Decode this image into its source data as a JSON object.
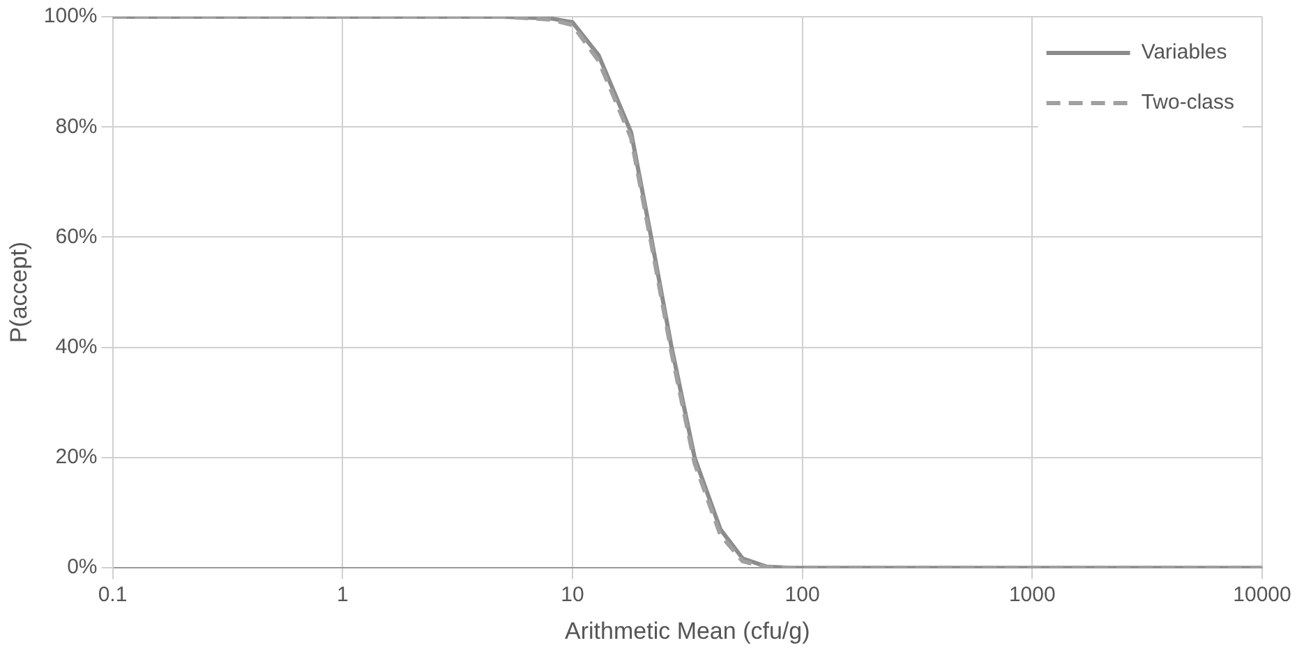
{
  "chart_data": {
    "type": "line",
    "xlabel": "Arithmetic Mean (cfu/g)",
    "ylabel": "P(accept)",
    "log": "x",
    "xlim": [
      0.1,
      10000
    ],
    "xticks": [
      0.1,
      1,
      10,
      100,
      1000,
      10000
    ],
    "ylim": [
      0,
      100
    ],
    "yticks": [
      {
        "value": 0,
        "label": "0%"
      },
      {
        "value": 20,
        "label": "20%"
      },
      {
        "value": 40,
        "label": "40%"
      },
      {
        "value": 60,
        "label": "60%"
      },
      {
        "value": 80,
        "label": "80%"
      },
      {
        "value": 100,
        "label": "100%"
      }
    ],
    "grid": true,
    "legend": "top right",
    "marker": "none",
    "series": [
      {
        "name": "Variables",
        "color": "#8c8c8c",
        "line_style": "solid",
        "x": [
          0.1,
          1,
          5,
          8,
          10,
          13,
          18,
          22,
          27,
          34,
          44,
          55,
          70,
          90,
          100,
          1000,
          10000
        ],
        "values": [
          100,
          100,
          100,
          99.7,
          99,
          93,
          79,
          60,
          40,
          20,
          7,
          1.7,
          0.2,
          0,
          0,
          0,
          0
        ]
      },
      {
        "name": "Two-class",
        "color": "#a0a0a0",
        "line_style": "dashed",
        "x": [
          0.1,
          1,
          5,
          8,
          10,
          13,
          18,
          22,
          27,
          34,
          44,
          55,
          70,
          90,
          100,
          1000,
          10000
        ],
        "values": [
          100,
          100,
          100,
          99.5,
          98.5,
          92,
          78,
          59,
          39,
          19,
          6,
          1.2,
          0.1,
          0,
          0,
          0,
          0
        ]
      }
    ]
  }
}
